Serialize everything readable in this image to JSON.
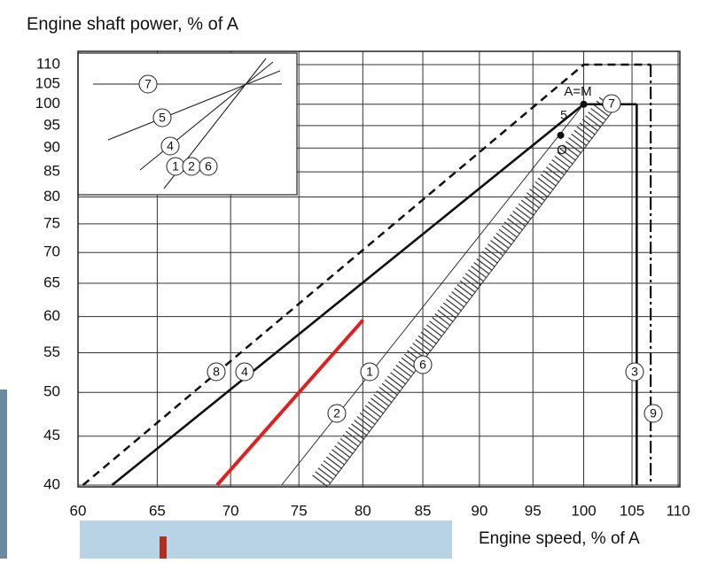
{
  "chart_data": {
    "type": "line",
    "title": "Engine shaft power, % of A",
    "x_label": "Engine speed, % of A",
    "xscale": "log",
    "yscale": "log",
    "xlim": [
      60,
      110
    ],
    "xticks": [
      60,
      65,
      70,
      75,
      80,
      85,
      90,
      95,
      100,
      105,
      110
    ],
    "ylim": [
      40,
      110
    ],
    "yticks": [
      40,
      45,
      50,
      55,
      60,
      65,
      70,
      75,
      80,
      85,
      90,
      95,
      100,
      105,
      110
    ],
    "grid": true,
    "series": [
      {
        "x": [
          60.3,
          100,
          107
        ],
        "values": [
          40,
          110,
          110
        ],
        "color": "#111111",
        "style": "dashed"
      },
      {
        "x": [
          62.1,
          100
        ],
        "values": [
          40,
          100
        ],
        "color": "#111111",
        "style": "thick"
      },
      {
        "x": [
          73.7,
          100
        ],
        "values": [
          40,
          100
        ],
        "color": "#333333",
        "style": "thin"
      },
      {
        "x": [
          77.3,
          103.5
        ],
        "values": [
          40,
          100
        ],
        "color": "#333333",
        "style": "hatched"
      },
      {
        "x": [
          100,
          105.5
        ],
        "values": [
          100,
          100
        ],
        "color": "#111111",
        "style": "thick"
      },
      {
        "x": [
          105.5,
          105.5
        ],
        "values": [
          100,
          40
        ],
        "color": "#111111",
        "style": "thick"
      },
      {
        "x": [
          107,
          107
        ],
        "values": [
          110,
          40
        ],
        "color": "#111111",
        "style": "dashdot"
      },
      {
        "x": [
          69.05,
          80.02
        ],
        "values": [
          40,
          59.5
        ],
        "color": "#e02020",
        "style": "red"
      }
    ],
    "points": [
      {
        "label": "A=M",
        "x": 100,
        "y": 100
      },
      {
        "label": "O",
        "x": 97.7,
        "y": 92.8
      }
    ],
    "annotations": [
      "8",
      "4",
      "1",
      "6",
      "2",
      "3",
      "9",
      "7",
      "5"
    ],
    "inset_labels": [
      "7",
      "5",
      "4",
      "1",
      "2",
      "6"
    ]
  }
}
